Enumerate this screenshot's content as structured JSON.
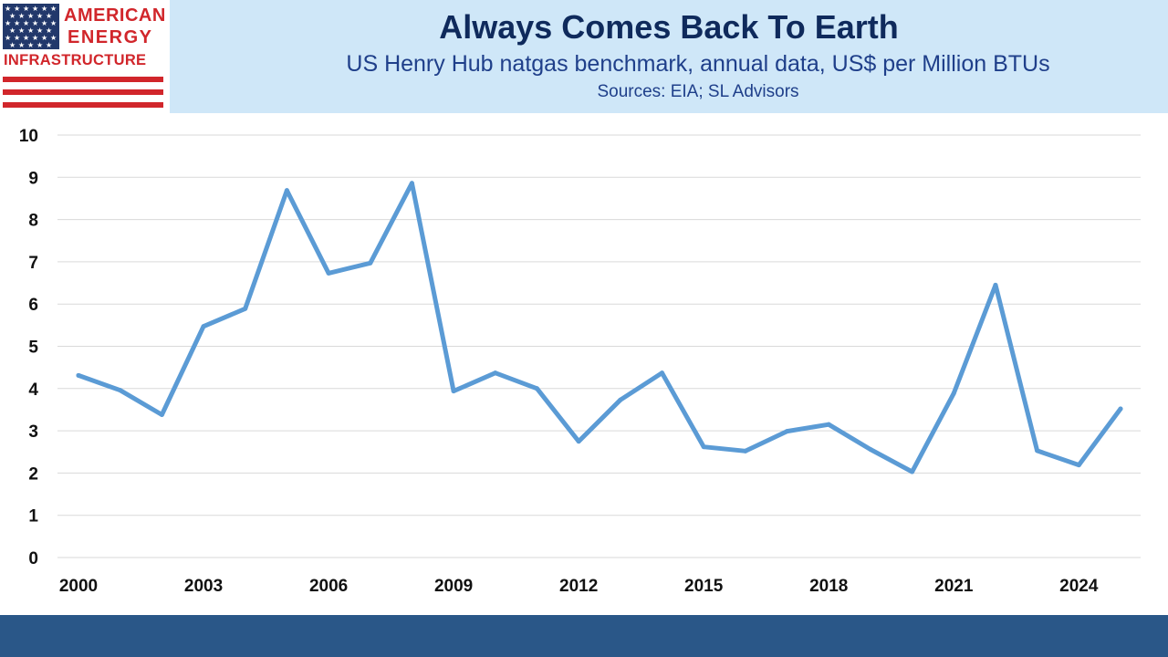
{
  "logo": {
    "line1": "AMERICAN",
    "line2": "ENERGY",
    "line3": "INFRASTRUCTURE"
  },
  "colors": {
    "line": "#5b9bd5",
    "header_band": "#cfe7f8",
    "title": "#0f2a5c",
    "subtitle": "#1f3f8a",
    "footer": "#2a5788",
    "logo_red": "#d1262b",
    "logo_navy": "#22386b"
  },
  "chart_data": {
    "type": "line",
    "title": "Always Comes Back To Earth",
    "subtitle": "US Henry Hub natgas benchmark, annual data, US$ per Million BTUs",
    "source": "Sources: EIA; SL Advisors",
    "xlabel": "",
    "ylabel": "",
    "ylim": [
      0,
      10
    ],
    "yticks": [
      "0",
      "1",
      "2",
      "3",
      "4",
      "5",
      "6",
      "7",
      "8",
      "9",
      "10"
    ],
    "xticks": [
      "2000",
      "2003",
      "2006",
      "2009",
      "2012",
      "2015",
      "2018",
      "2021",
      "2024"
    ],
    "grid": true,
    "legend": "none",
    "series": [
      {
        "x": [
          2000,
          2001,
          2002,
          2003,
          2004,
          2005,
          2006,
          2007,
          2008,
          2009,
          2010,
          2011,
          2012,
          2013,
          2014,
          2015,
          2016,
          2017,
          2018,
          2019,
          2020,
          2021,
          2022,
          2023,
          2024,
          2025
        ],
        "values": [
          4.31,
          3.96,
          3.38,
          5.47,
          5.89,
          8.69,
          6.73,
          6.97,
          8.86,
          3.94,
          4.37,
          4.0,
          2.75,
          3.73,
          4.37,
          2.62,
          2.52,
          2.99,
          3.15,
          2.56,
          2.03,
          3.89,
          6.45,
          2.53,
          2.19,
          3.52
        ]
      }
    ]
  }
}
